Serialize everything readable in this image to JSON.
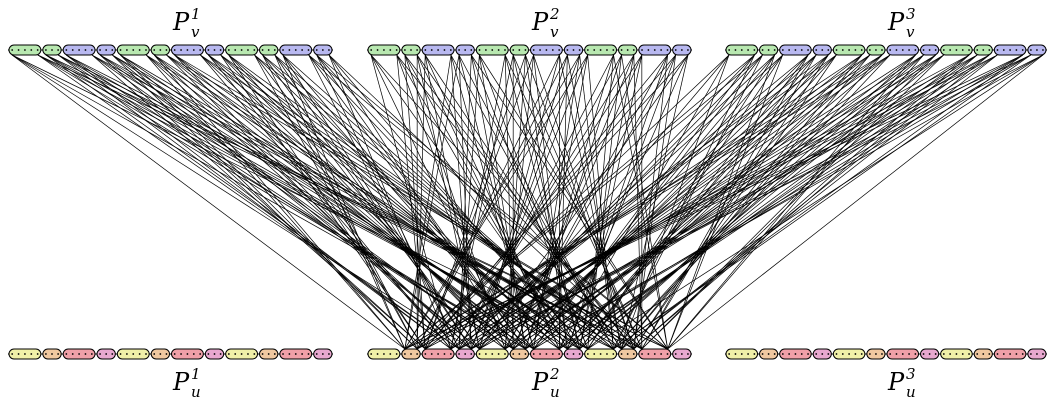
{
  "colors": {
    "green": "#b8e8b0",
    "blue": "#b8b8f0",
    "yellow": "#f0f0a8",
    "orange": "#f0c8a0",
    "red": "#f0a0a8",
    "pink": "#e8a8d0",
    "outline": "#000000",
    "edge": "#000000"
  },
  "top_labels": [
    {
      "main": "P",
      "sup": "1",
      "sub": "v"
    },
    {
      "main": "P",
      "sup": "2",
      "sub": "v"
    },
    {
      "main": "P",
      "sup": "3",
      "sub": "v"
    }
  ],
  "bottom_labels": [
    {
      "main": "P",
      "sup": "1",
      "sub": "u"
    },
    {
      "main": "P",
      "sup": "2",
      "sub": "u"
    },
    {
      "main": "P",
      "sup": "3",
      "sub": "u"
    }
  ],
  "top_groups": [
    [
      "green",
      "green",
      "blue",
      "blue",
      "green",
      "green",
      "blue",
      "blue",
      "green",
      "green",
      "blue",
      "blue"
    ],
    [
      "green",
      "green",
      "blue",
      "blue",
      "green",
      "green",
      "blue",
      "blue",
      "green",
      "green",
      "blue",
      "blue"
    ],
    [
      "green",
      "green",
      "blue",
      "blue",
      "green",
      "green",
      "blue",
      "blue",
      "green",
      "green",
      "blue",
      "blue"
    ]
  ],
  "bottom_groups": [
    [
      "yellow",
      "orange",
      "red",
      "pink",
      "yellow",
      "orange",
      "red",
      "pink",
      "yellow",
      "orange",
      "red",
      "pink"
    ],
    [
      "yellow",
      "orange",
      "red",
      "pink",
      "yellow",
      "orange",
      "red",
      "pink",
      "yellow",
      "orange",
      "red",
      "pink"
    ],
    [
      "yellow",
      "orange",
      "red",
      "pink",
      "yellow",
      "orange",
      "red",
      "pink",
      "yellow",
      "orange",
      "red",
      "pink"
    ]
  ]
}
